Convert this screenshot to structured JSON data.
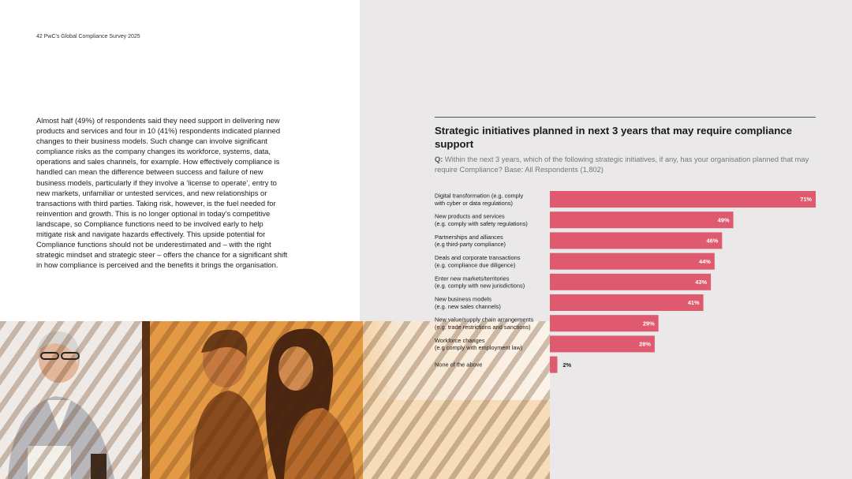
{
  "header": {
    "page_label": "42  PwC's Global Compliance Survey 2025"
  },
  "body": {
    "paragraph": "Almost half (49%) of respondents said they need support in delivering new products and services and four in 10 (41%) respondents indicated planned changes to their business models. Such change can involve significant compliance risks as the company changes its workforce, systems, data, operations and sales channels, for example. How effectively compliance is handled can mean the difference between success and failure of new business models, particularly if they involve a ‘license to operate’, entry to new markets, unfamiliar or untested services, and new relationships or transactions with third parties. Taking risk, however, is the fuel needed for reinvention and growth. This is no longer optional in today’s competitive landscape, so Compliance functions need to be involved early to help mitigate risk and navigate hazards effectively. This upside potential for Compliance functions should not be underestimated and – with the right strategic mindset and strategic steer – offers the chance for a significant shift in how compliance is perceived and the benefits it brings the organisation."
  },
  "colors": {
    "bar": "#e05a6f",
    "panel": "#eae8e8"
  },
  "chart_data": {
    "type": "bar",
    "orientation": "horizontal",
    "title": "Strategic initiatives planned in next 3 years that may require compliance support",
    "question_prefix": "Q:",
    "question": "Within the next 3 years, which of the following strategic initiatives, if any, has your organisation planned that may require Compliance? Base: All Respondents (1,802)",
    "categories": [
      [
        "Digital transformation (e.g. comply",
        "with cyber or data regulations)"
      ],
      [
        "New products and services",
        "(e.g. comply with safety regulations)"
      ],
      [
        "Partnerships and alliances",
        "(e.g third-party compliance)"
      ],
      [
        "Deals and corporate transactions",
        "(e.g. compliance due diligence)"
      ],
      [
        "Enter new markets/territories",
        "(e.g. comply with new jurisdictions)"
      ],
      [
        "New business models",
        "(e.g. new sales channels)"
      ],
      [
        "New value/supply chain arrangements",
        "(e.g. trade restrictions and sanctions)"
      ],
      [
        "Workforce changes",
        "(e.g comply with employment law)"
      ],
      [
        "None of the above"
      ]
    ],
    "values": [
      71,
      49,
      46,
      44,
      43,
      41,
      29,
      28,
      2
    ],
    "value_labels": [
      "71%",
      "49%",
      "46%",
      "44%",
      "43%",
      "41%",
      "29%",
      "28%",
      "2%"
    ],
    "xlim": [
      0,
      71
    ],
    "unit": "%"
  }
}
